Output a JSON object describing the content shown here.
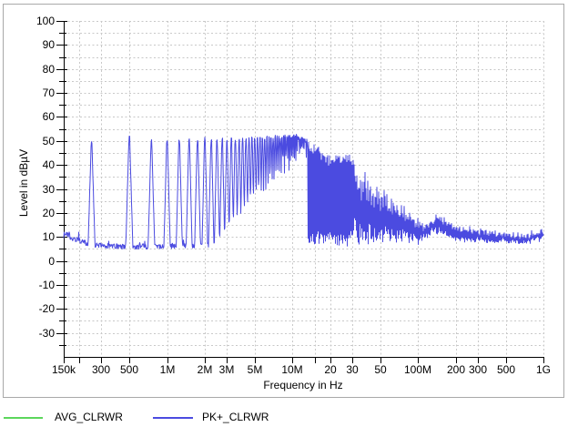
{
  "chart_data": {
    "type": "line",
    "title": "",
    "xlabel": "Frequency in Hz",
    "ylabel": "Level in dBµV",
    "x_scale": "log",
    "x_range_hz": [
      150000.0,
      1000000000.0
    ],
    "y_range_db": [
      -40,
      100
    ],
    "grid": "dashed, every 5 dB and every major frequency tick",
    "legend_position": "bottom",
    "y_ticks": [
      {
        "v": 100,
        "label": "100"
      },
      {
        "v": 90,
        "label": "90"
      },
      {
        "v": 80,
        "label": "80"
      },
      {
        "v": 70,
        "label": "70"
      },
      {
        "v": 60,
        "label": "60"
      },
      {
        "v": 50,
        "label": "50"
      },
      {
        "v": 40,
        "label": "40"
      },
      {
        "v": 30,
        "label": "30"
      },
      {
        "v": 20,
        "label": "20"
      },
      {
        "v": 10,
        "label": "10"
      },
      {
        "v": 0,
        "label": "0"
      },
      {
        "v": -10,
        "label": "-10"
      },
      {
        "v": -20,
        "label": "-20"
      },
      {
        "v": -30,
        "label": "-30"
      }
    ],
    "x_ticks": [
      {
        "f": 150000.0,
        "label": "150k"
      },
      {
        "f": 200000.0,
        "label": ""
      },
      {
        "f": 300000.0,
        "label": "300"
      },
      {
        "f": 500000.0,
        "label": "500"
      },
      {
        "f": 1000000.0,
        "label": "1M"
      },
      {
        "f": 2000000.0,
        "label": "2M"
      },
      {
        "f": 3000000.0,
        "label": "3M"
      },
      {
        "f": 5000000.0,
        "label": "5M"
      },
      {
        "f": 10000000.0,
        "label": "10M"
      },
      {
        "f": 15000000.0,
        "label": ""
      },
      {
        "f": 20000000.0,
        "label": "20"
      },
      {
        "f": 30000000.0,
        "label": "30"
      },
      {
        "f": 50000000.0,
        "label": "50"
      },
      {
        "f": 100000000.0,
        "label": "100M"
      },
      {
        "f": 200000000.0,
        "label": "200"
      },
      {
        "f": 300000000.0,
        "label": "300"
      },
      {
        "f": 500000000.0,
        "label": "500"
      },
      {
        "f": 1000000000.0,
        "label": "1G"
      }
    ],
    "series": [
      {
        "name": "AVG_CLRWR",
        "color": "#5cd65c",
        "visible_in_plot": false
      },
      {
        "name": "PK+_CLRWR",
        "color": "#4b4be0",
        "visible_in_plot": true
      }
    ],
    "pk_trace": {
      "description": "harmonic comb of ~250 kHz spikes up to 30 MHz over ~6-8 dB noise floor, then dense noise band descending from ~44 dB at 30 MHz to ~10 dB toward 1 GHz with a bump near 140 MHz",
      "spike_fundamental_hz": 250000.0,
      "spike_peak_env_db": [
        [
          250000.0,
          49
        ],
        [
          500000.0,
          51.5
        ],
        [
          750000.0,
          50
        ],
        [
          1000000.0,
          50.5
        ],
        [
          1500000.0,
          50.5
        ],
        [
          2000000.0,
          51
        ],
        [
          3000000.0,
          50.5
        ],
        [
          5000000.0,
          51
        ],
        [
          7000000.0,
          51.5
        ],
        [
          9000000.0,
          52
        ],
        [
          11000000.0,
          52
        ],
        [
          13000000.0,
          50
        ],
        [
          15000000.0,
          48.5
        ],
        [
          18000000.0,
          46
        ],
        [
          20000000.0,
          43.5
        ],
        [
          23000000.0,
          44
        ],
        [
          26000000.0,
          45
        ],
        [
          30000000.0,
          44.5
        ]
      ],
      "noise_floor_db": [
        [
          150000.0,
          10.5
        ],
        [
          160000.0,
          11
        ],
        [
          180000.0,
          9
        ],
        [
          200000.0,
          8.5
        ],
        [
          240000.0,
          7
        ],
        [
          300000.0,
          6.5
        ],
        [
          400000.0,
          6
        ],
        [
          600000.0,
          6
        ],
        [
          1000000.0,
          6.2
        ],
        [
          2000000.0,
          6.5
        ],
        [
          4000000.0,
          7
        ],
        [
          8000000.0,
          7.5
        ],
        [
          15000000.0,
          7
        ],
        [
          30000000.0,
          6.2
        ]
      ],
      "band_upper_env_db": [
        [
          30000000.0,
          44
        ],
        [
          35000000.0,
          38
        ],
        [
          40000000.0,
          35
        ],
        [
          45000000.0,
          32
        ],
        [
          50000000.0,
          30
        ],
        [
          60000000.0,
          27
        ],
        [
          70000000.0,
          25
        ],
        [
          80000000.0,
          22
        ],
        [
          90000000.0,
          19
        ],
        [
          100000000.0,
          17
        ],
        [
          110000000.0,
          15
        ],
        [
          125000000.0,
          17.5
        ],
        [
          145000000.0,
          19.5
        ],
        [
          160000000.0,
          18
        ],
        [
          180000000.0,
          16.5
        ],
        [
          200000000.0,
          15
        ],
        [
          230000000.0,
          14
        ],
        [
          280000000.0,
          13.5
        ],
        [
          350000000.0,
          12.5
        ],
        [
          450000000.0,
          12
        ],
        [
          600000000.0,
          11
        ],
        [
          800000000.0,
          11.5
        ],
        [
          950000000.0,
          13.5
        ],
        [
          1000000000.0,
          13
        ]
      ],
      "band_lower_env_db": [
        [
          30000000.0,
          5.5
        ],
        [
          40000000.0,
          6
        ],
        [
          60000000.0,
          7
        ],
        [
          80000000.0,
          8
        ],
        [
          100000000.0,
          7
        ],
        [
          115000000.0,
          9
        ],
        [
          130000000.0,
          11
        ],
        [
          150000000.0,
          11.5
        ],
        [
          170000000.0,
          10
        ],
        [
          200000000.0,
          8.5
        ],
        [
          250000000.0,
          8
        ],
        [
          350000000.0,
          7.5
        ],
        [
          500000000.0,
          7.5
        ],
        [
          700000000.0,
          7
        ],
        [
          1000000000.0,
          8.5
        ]
      ]
    },
    "colors": {
      "axis": "#000000",
      "grid": "#c8c8c8",
      "panel_border": "#a9a9a9",
      "background": "#ffffff",
      "text": "#000000"
    }
  }
}
